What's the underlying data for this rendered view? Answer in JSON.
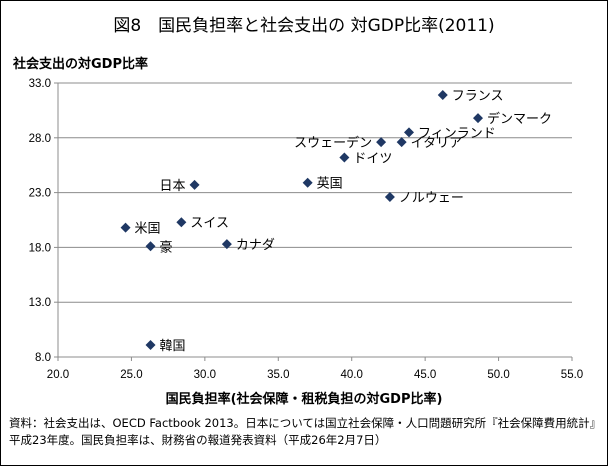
{
  "title": "図8　国民負担率と社会支出の 対GDP比率(2011)",
  "source_note": "資料：社会支出は、OECD Factbook 2013。日本については国立社会保障・人口問題研究所『社会保障費用統計』平成23年度。国民負担率は、財務省の報道発表資料（平成26年2月7日）",
  "chart_data": {
    "type": "scatter",
    "xlabel": "国民負担率(社会保障・租税負担の対GDP比率)",
    "ylabel": "社会支出の対GDP比率",
    "xlim": [
      20.0,
      55.0
    ],
    "ylim": [
      8.0,
      33.0
    ],
    "x_ticks": [
      "20.0",
      "25.0",
      "30.0",
      "35.0",
      "40.0",
      "45.0",
      "50.0",
      "55.0"
    ],
    "y_ticks": [
      "8.0",
      "13.0",
      "18.0",
      "23.0",
      "28.0",
      "33.0"
    ],
    "grid": "horizontal",
    "marker_color": "#1f3864",
    "points": [
      {
        "label": "フランス",
        "x": 46.2,
        "y": 31.9,
        "label_pos": "right"
      },
      {
        "label": "デンマーク",
        "x": 48.6,
        "y": 29.8,
        "label_pos": "right"
      },
      {
        "label": "フィンランド",
        "x": 43.9,
        "y": 28.5,
        "label_pos": "right"
      },
      {
        "label": "スウェーデン",
        "x": 42.0,
        "y": 27.6,
        "label_pos": "left"
      },
      {
        "label": "イタリア",
        "x": 43.4,
        "y": 27.6,
        "label_pos": "right"
      },
      {
        "label": "ドイツ",
        "x": 39.5,
        "y": 26.2,
        "label_pos": "right"
      },
      {
        "label": "日本",
        "x": 29.3,
        "y": 23.7,
        "label_pos": "left"
      },
      {
        "label": "英国",
        "x": 37.0,
        "y": 23.9,
        "label_pos": "right"
      },
      {
        "label": "ノルウェー",
        "x": 42.6,
        "y": 22.6,
        "label_pos": "right"
      },
      {
        "label": "スイス",
        "x": 28.4,
        "y": 20.3,
        "label_pos": "right"
      },
      {
        "label": "米国",
        "x": 24.6,
        "y": 19.8,
        "label_pos": "right"
      },
      {
        "label": "豪",
        "x": 26.3,
        "y": 18.1,
        "label_pos": "right"
      },
      {
        "label": "カナダ",
        "x": 31.5,
        "y": 18.3,
        "label_pos": "right"
      },
      {
        "label": "韓国",
        "x": 26.3,
        "y": 9.1,
        "label_pos": "right"
      }
    ]
  }
}
